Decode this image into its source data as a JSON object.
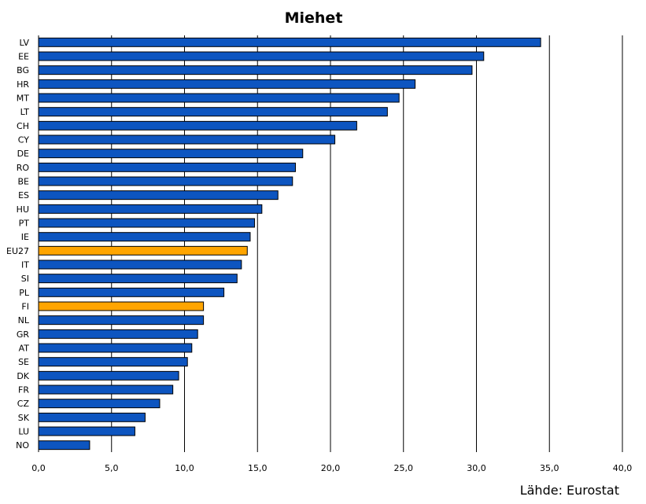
{
  "chart_data": {
    "type": "bar",
    "orientation": "horizontal",
    "title": "Miehet",
    "xlabel": "",
    "ylabel": "",
    "xlim": [
      0,
      40
    ],
    "x_ticks": [
      "0,0",
      "5,0",
      "10,0",
      "15,0",
      "20,0",
      "25,0",
      "30,0",
      "35,0",
      "40,0"
    ],
    "grid": "vertical",
    "categories": [
      "LV",
      "EE",
      "BG",
      "HR",
      "MT",
      "LT",
      "CH",
      "CY",
      "DE",
      "RO",
      "BE",
      "ES",
      "HU",
      "PT",
      "IE",
      "EU27",
      "IT",
      "SI",
      "PL",
      "FI",
      "NL",
      "GR",
      "AT",
      "SE",
      "DK",
      "FR",
      "CZ",
      "SK",
      "LU",
      "NO"
    ],
    "values": [
      34.4,
      30.5,
      29.7,
      25.8,
      24.7,
      23.9,
      21.8,
      20.3,
      18.1,
      17.6,
      17.4,
      16.4,
      15.3,
      14.8,
      14.5,
      14.3,
      13.9,
      13.6,
      12.7,
      11.3,
      11.3,
      10.9,
      10.5,
      10.2,
      9.6,
      9.2,
      8.3,
      7.3,
      6.6,
      3.5
    ],
    "highlight": [
      "EU27",
      "FI"
    ],
    "colors": {
      "bar": "#0D55C0",
      "highlight": "#FFA500",
      "outline": "#000000",
      "grid": "#000000"
    },
    "source": "Lähde: Eurostat"
  }
}
